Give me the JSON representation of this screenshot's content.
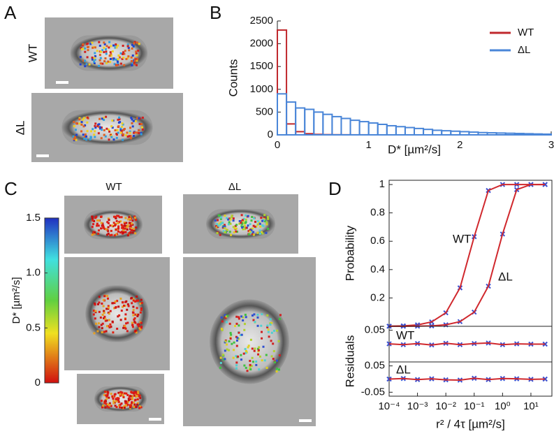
{
  "panel_labels": [
    "A",
    "B",
    "C",
    "D"
  ],
  "panel_a": {
    "labels": [
      "WT",
      "ΔL"
    ]
  },
  "panel_c": {
    "labels": [
      "WT",
      "ΔL"
    ],
    "colorbar": {
      "label": "D* [µm²/s]",
      "lim": [
        0,
        1.5
      ],
      "ticks": [
        0,
        0.5,
        {
          "value": 1,
          "label": "1.0"
        },
        1.5
      ]
    }
  },
  "chart_data": [
    {
      "type": "histogram",
      "xlabel": "D* [µm²/s]",
      "ylabel": "Counts",
      "bins": [
        0,
        0.1,
        0.2,
        0.3,
        0.4,
        0.5,
        0.6,
        0.7,
        0.8,
        0.9,
        1,
        1.1,
        1.2,
        1.3,
        1.4,
        1.5,
        1.6,
        1.7,
        1.8,
        1.9,
        2,
        2.1,
        2.2,
        2.3,
        2.4,
        2.5,
        2.6,
        2.7,
        2.8,
        2.9,
        3
      ],
      "series": [
        {
          "name": "WT",
          "color": "#c0282d",
          "values": [
            2300,
            240,
            70,
            25,
            10,
            5,
            3,
            2,
            1,
            1,
            0,
            0,
            0,
            0,
            0,
            0,
            0,
            0,
            0,
            0,
            0,
            0,
            0,
            0,
            0,
            0,
            0,
            0,
            0,
            0
          ]
        },
        {
          "name": "ΔL",
          "color": "#4a86d8",
          "values": [
            900,
            720,
            590,
            560,
            500,
            450,
            400,
            360,
            320,
            290,
            260,
            230,
            200,
            180,
            160,
            140,
            120,
            100,
            90,
            80,
            70,
            60,
            50,
            45,
            40,
            35,
            30,
            25,
            20,
            15
          ]
        }
      ],
      "xlim": [
        0,
        3
      ],
      "ylim": [
        0,
        2500
      ],
      "xticks": [
        0,
        1,
        2,
        3
      ],
      "yticks": [
        0,
        500,
        1000,
        1500,
        2000,
        2500
      ],
      "legend": "upper right"
    },
    {
      "type": "line",
      "ylabel": "Probability",
      "xscale": "log",
      "x": [
        0.0001,
        0.000316,
        0.001,
        0.00316,
        0.01,
        0.0316,
        0.1,
        0.316,
        1,
        3.16,
        10,
        31.6
      ],
      "xlim": [
        0.0001,
        55
      ],
      "ylim": [
        0,
        1.03
      ],
      "yticks": [
        0.2,
        0.4,
        0.6,
        0.8,
        1
      ],
      "series": [
        {
          "color": "#d0282d",
          "marker_color": "#3a4fd0",
          "values": [
            0.001,
            0.003,
            0.01,
            0.031,
            0.095,
            0.271,
            0.632,
            0.958,
            1,
            1,
            1,
            1
          ]
        },
        {
          "color": "#d0282d",
          "marker_color": "#3a4fd0",
          "values": [
            0.0001,
            0.0003,
            0.001,
            0.003,
            0.0105,
            0.033,
            0.1,
            0.283,
            0.651,
            0.964,
            1,
            1
          ]
        }
      ],
      "annotations": [
        "WT",
        "ΔL"
      ]
    },
    {
      "type": "line",
      "ylabel": "Residuals",
      "xscale": "log",
      "x": [
        0.0001,
        0.000316,
        0.001,
        0.00316,
        0.01,
        0.0316,
        0.1,
        0.316,
        1,
        3.16,
        10,
        31.6
      ],
      "xlim": [
        0.0001,
        55
      ],
      "ylim": [
        -0.064,
        0.064
      ],
      "yticks": [
        0.05
      ],
      "series": [
        {
          "color": "#d0282d",
          "marker_color": "#3a4fd0",
          "values": [
            0.001,
            -0.002,
            0.002,
            -0.003,
            0.003,
            -0.002,
            0.002,
            0.004,
            -0.002,
            0.001,
            0,
            0
          ]
        }
      ],
      "annotations": [
        "WT"
      ]
    },
    {
      "type": "line",
      "xlabel": "r² / 4τ [µm²/s]",
      "xscale": "log",
      "x": [
        0.0001,
        0.000316,
        0.001,
        0.00316,
        0.01,
        0.0316,
        0.1,
        0.316,
        1,
        3.16,
        10,
        31.6
      ],
      "xlim": [
        0.0001,
        55
      ],
      "ylim": [
        -0.065,
        0.065
      ],
      "yticks": [
        0.05,
        -0.05
      ],
      "xticks": [
        {
          "value": 0.0001,
          "label": "10⁻⁴"
        },
        {
          "value": 0.001,
          "label": "10⁻³"
        },
        {
          "value": 0.01,
          "label": "10⁻²"
        },
        {
          "value": 0.1,
          "label": "10⁻¹"
        },
        {
          "value": 1,
          "label": "10⁰"
        },
        {
          "value": 10,
          "label": "10¹"
        }
      ],
      "series": [
        {
          "color": "#d0282d",
          "marker_color": "#3a4fd0",
          "values": [
            0,
            0.002,
            -0.002,
            0.001,
            -0.003,
            -0.004,
            0.003,
            -0.002,
            0.002,
            0.001,
            -0.001,
            0
          ]
        }
      ],
      "annotations": [
        "ΔL"
      ]
    }
  ]
}
